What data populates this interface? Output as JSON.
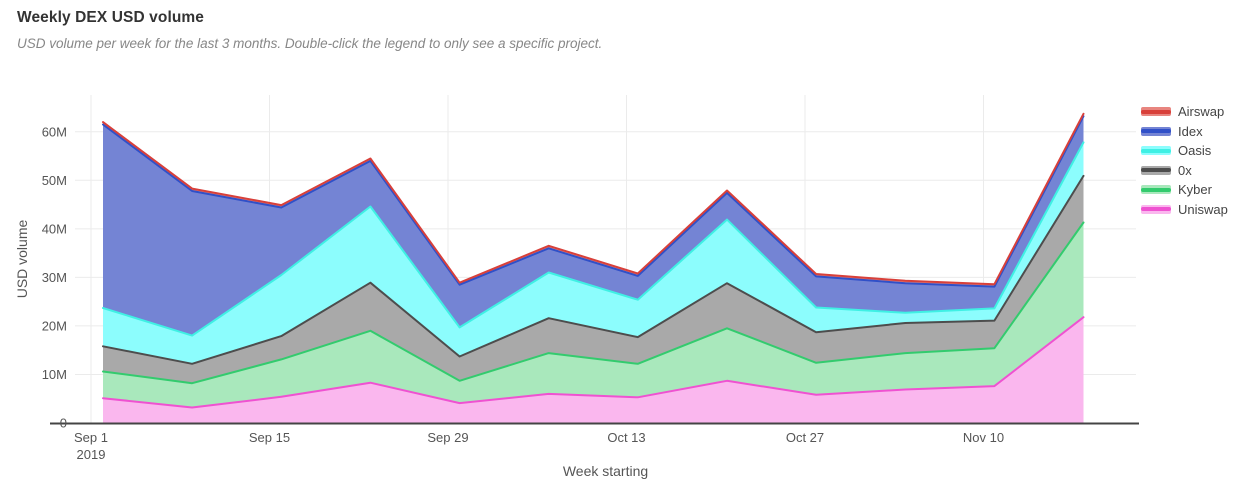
{
  "header": {
    "title": "Weekly DEX USD volume",
    "subtitle": "USD volume per week for the last 3 months. Double-click the legend to only see a specific project."
  },
  "chart_data": {
    "type": "area",
    "stacked": true,
    "title": "Weekly DEX USD volume",
    "xlabel": "Week starting",
    "ylabel": "USD volume",
    "unit": "USD, millions",
    "ylim": [
      0,
      67.5
    ],
    "grid": true,
    "legend_position": "right",
    "categories": [
      "Sep 2",
      "Sep 9",
      "Sep 16",
      "Sep 23",
      "Sep 30",
      "Oct 7",
      "Oct 14",
      "Oct 21",
      "Oct 28",
      "Nov 4",
      "Nov 11",
      "Nov 18"
    ],
    "x_ticks": [
      {
        "label": "Sep 1",
        "sublabel": "2019"
      },
      {
        "label": "Sep 15"
      },
      {
        "label": "Sep 29"
      },
      {
        "label": "Oct 13"
      },
      {
        "label": "Oct 27"
      },
      {
        "label": "Nov 10"
      }
    ],
    "y_ticks": {
      "values": [
        0,
        10,
        20,
        30,
        40,
        50,
        60
      ],
      "labels": [
        "0",
        "10M",
        "20M",
        "30M",
        "40M",
        "50M",
        "60M"
      ]
    },
    "series": [
      {
        "name": "Uniswap",
        "line_color": "#ef52d1",
        "fill_color": "#fab7ee",
        "values": [
          5.1,
          3.2,
          5.4,
          8.3,
          4.1,
          6.0,
          5.3,
          8.7,
          5.8,
          6.9,
          7.6,
          21.8
        ]
      },
      {
        "name": "Kyber",
        "line_color": "#33cb6e",
        "fill_color": "#a9e8bc",
        "values": [
          5.5,
          5.0,
          7.7,
          10.7,
          4.6,
          8.4,
          6.9,
          10.8,
          6.6,
          7.5,
          7.8,
          19.5
        ]
      },
      {
        "name": "0x",
        "line_color": "#4d4d4d",
        "fill_color": "#a9a9a9",
        "values": [
          5.2,
          4.0,
          4.8,
          9.9,
          5.0,
          7.2,
          5.5,
          9.3,
          6.3,
          6.2,
          5.7,
          9.6
        ]
      },
      {
        "name": "Oasis",
        "line_color": "#3ff0e4",
        "fill_color": "#8cfdfd",
        "values": [
          7.9,
          5.8,
          12.6,
          15.7,
          6.0,
          9.4,
          7.7,
          13.1,
          5.1,
          2.1,
          2.5,
          6.9
        ]
      },
      {
        "name": "Idex",
        "line_color": "#3050c8",
        "fill_color": "#7484d4",
        "values": [
          37.8,
          29.8,
          13.9,
          9.4,
          8.8,
          5.0,
          4.9,
          5.5,
          6.4,
          6.1,
          4.5,
          5.4
        ]
      },
      {
        "name": "Airswap",
        "line_color": "#d8403a",
        "fill_color": "#e8857f",
        "values": [
          0.5,
          0.5,
          0.5,
          0.5,
          0.4,
          0.5,
          0.5,
          0.5,
          0.5,
          0.5,
          0.5,
          0.5
        ]
      }
    ],
    "legend_order": [
      "Airswap",
      "Idex",
      "Oasis",
      "0x",
      "Kyber",
      "Uniswap"
    ]
  }
}
